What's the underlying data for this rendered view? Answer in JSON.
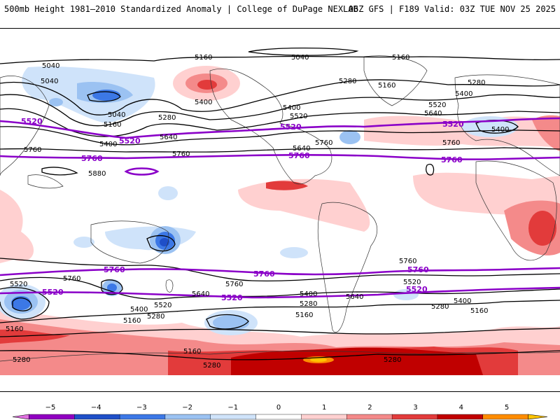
{
  "header": {
    "left_title": "500mb Height 1981–2010 Standardized Anomaly | College of DuPage NEXLAB",
    "right_title": "06Z GFS | F189 Valid: 03Z TUE NOV 25 2025"
  },
  "colors": {
    "bold_contour": "#8a00c8",
    "scale": [
      "#e070e0",
      "#9000c0",
      "#1f4fc8",
      "#3c78e6",
      "#9bc2f2",
      "#cfe3fa",
      "#ffffff",
      "#ffd0d0",
      "#f48a8a",
      "#e23b3b",
      "#c00000",
      "#ff8c00",
      "#ffc400"
    ]
  },
  "contour_labels": {
    "c5040": "5040",
    "c5160": "5160",
    "c5280": "5280",
    "c5400": "5400",
    "c5520": "5520",
    "c5640": "5640",
    "c5760": "5760",
    "c5880": "5880"
  },
  "colorbar": {
    "ticks": [
      "−5",
      "−4",
      "−3",
      "−2",
      "−1",
      "0",
      "1",
      "2",
      "3",
      "4",
      "5"
    ]
  }
}
